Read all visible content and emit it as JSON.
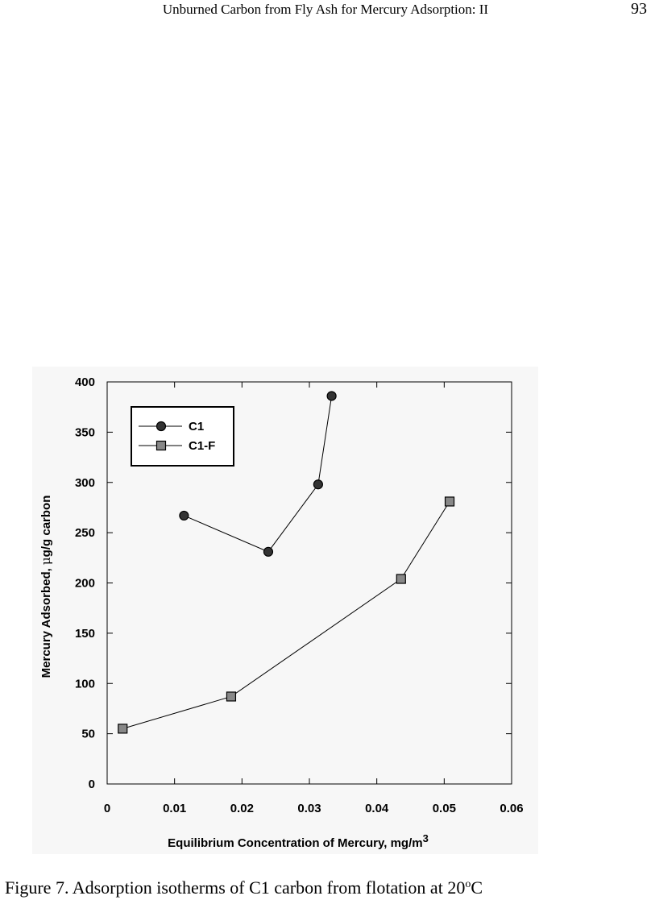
{
  "header": {
    "title": "Unburned Carbon from Fly Ash for Mercury Adsorption: II",
    "page_number": "93"
  },
  "chart_data": {
    "type": "line",
    "x_label": {
      "text": "Equilibrium Concentration of Mercury, mg/m",
      "sup": "3"
    },
    "y_label": {
      "text": "Mercury Adsorbed, ",
      "symbol": "μ",
      "rest": "g/g carbon"
    },
    "series": [
      {
        "name": "C1",
        "color": "#333333",
        "marker": "circle",
        "x": [
          0.0114,
          0.0239,
          0.0313,
          0.0333
        ],
        "values": [
          267,
          231,
          298,
          386
        ]
      },
      {
        "name": "C1-F",
        "color": "#888888",
        "marker": "square",
        "x": [
          0.0023,
          0.0184,
          0.0436,
          0.0508
        ],
        "values": [
          55,
          87,
          204,
          281
        ]
      }
    ],
    "xlim": [
      0,
      0.06
    ],
    "xticks": [
      0,
      0.01,
      0.02,
      0.03,
      0.04,
      0.05,
      0.06
    ],
    "ylim": [
      0,
      400
    ],
    "yticks": [
      0,
      50,
      100,
      150,
      200,
      250,
      300,
      350,
      400
    ],
    "legend": "upper left",
    "grid": false
  },
  "caption": {
    "text": "Figure 7. Adsorption isotherms of C1 carbon from flotation at 20",
    "sup": "o",
    "end": "C"
  }
}
